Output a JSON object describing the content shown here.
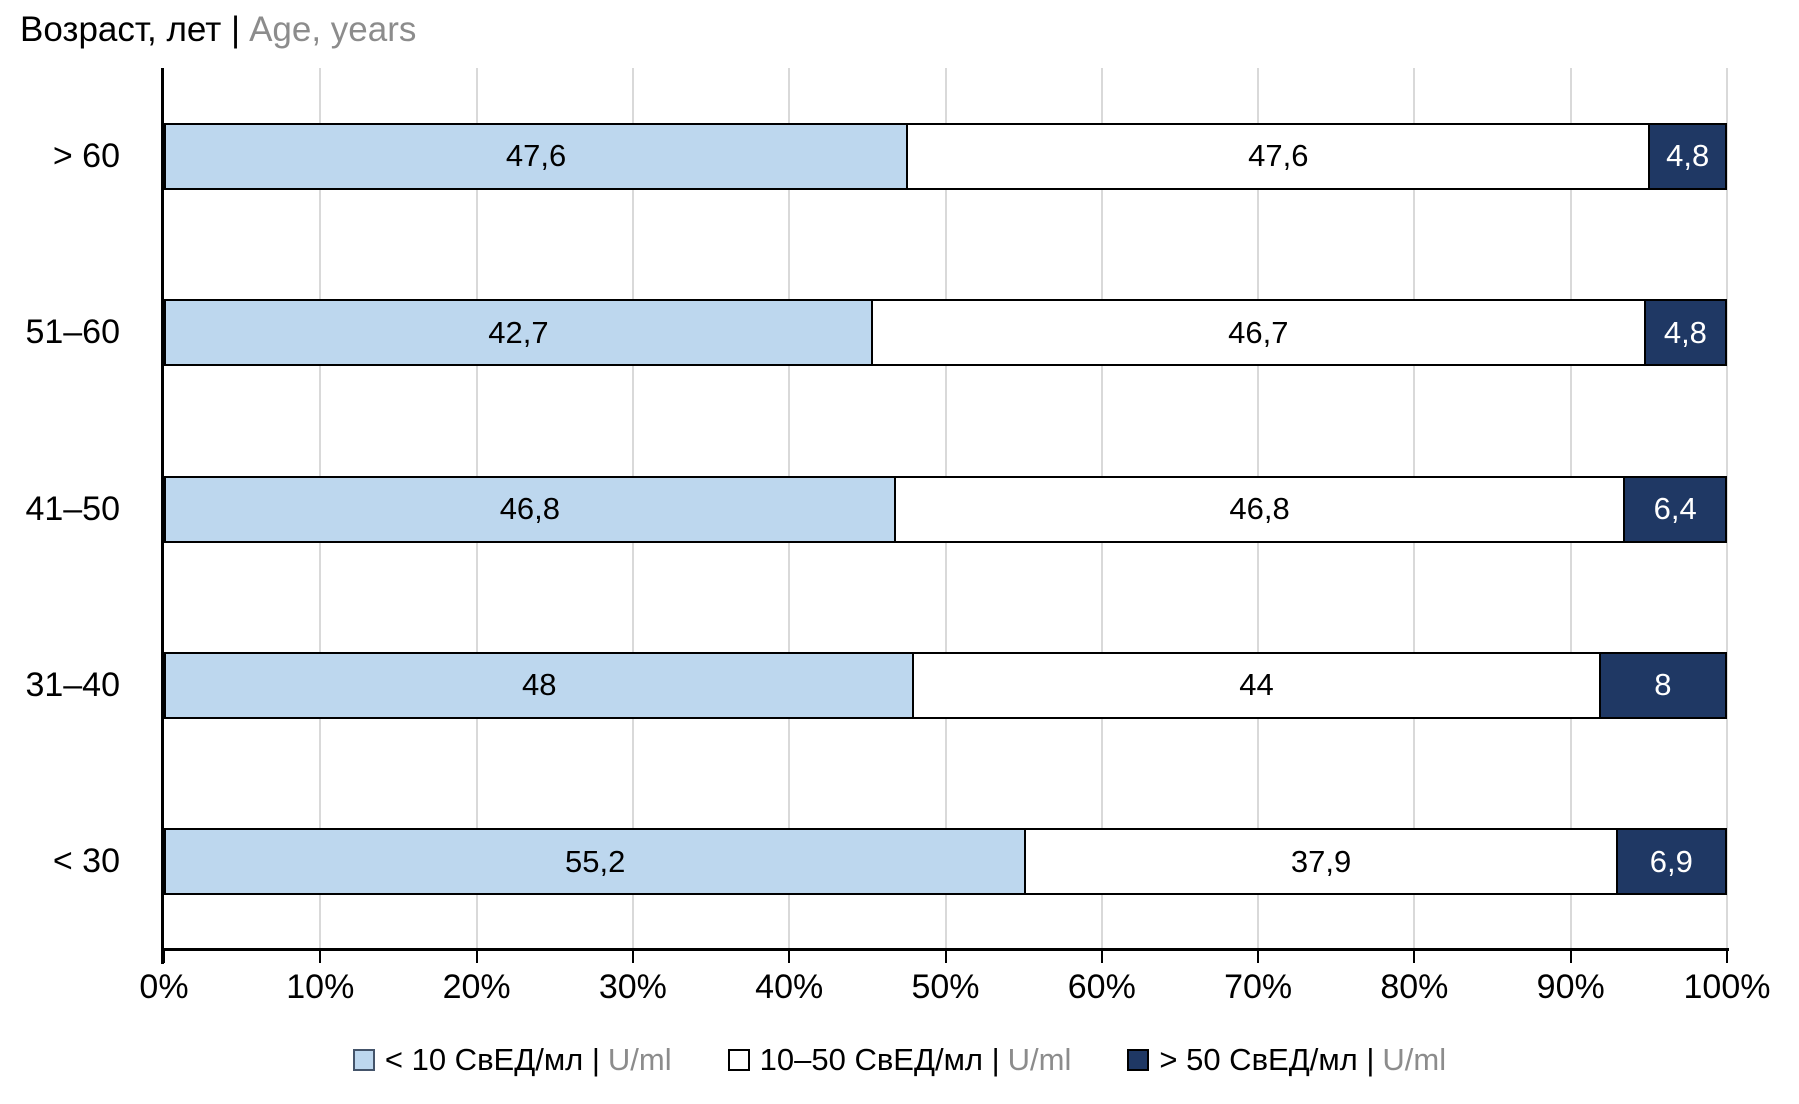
{
  "title": {
    "primary": "Возраст, лет |",
    "secondary": "Age, years"
  },
  "colors": {
    "series_light_blue": "#BDD7EE",
    "series_white": "#FFFFFF",
    "series_navy": "#1F3864",
    "segment_border": "#000000",
    "gridline": "#D9D9D9",
    "axis": "#000000",
    "secondary_text": "#8C8C8C"
  },
  "chart_data": {
    "type": "bar",
    "subtype": "horizontal-100pct-stacked",
    "title": "Возраст, лет | Age, years",
    "categories": [
      "> 60",
      "51–60",
      "41–50",
      "31–40",
      "< 30"
    ],
    "series": [
      {
        "name": "< 10 СвЕД/мл | U/ml",
        "values": [
          47.6,
          42.7,
          46.8,
          48,
          55.2
        ],
        "labels": [
          "47,6",
          "42,7",
          "46,8",
          "48",
          "55,2"
        ],
        "color": "#BDD7EE",
        "text_color": "#000000"
      },
      {
        "name": "10–50 СвЕД/мл | U/ml",
        "values": [
          47.6,
          46.7,
          46.8,
          44,
          37.9
        ],
        "labels": [
          "47,6",
          "46,7",
          "46,8",
          "44",
          "37,9"
        ],
        "color": "#FFFFFF",
        "text_color": "#000000"
      },
      {
        "name": "> 50 СвЕД/мл | U/ml",
        "values": [
          4.8,
          4.8,
          6.4,
          8,
          6.9
        ],
        "labels": [
          "4,8",
          "4,8",
          "6,4",
          "8",
          "6,9"
        ],
        "color": "#1F3864",
        "text_color": "#FFFFFF"
      }
    ],
    "x_ticks": [
      "0%",
      "10%",
      "20%",
      "30%",
      "40%",
      "50%",
      "60%",
      "70%",
      "80%",
      "90%",
      "100%"
    ],
    "xlim": [
      0,
      100
    ],
    "grid": "vertical gridlines every 10%",
    "legend_position": "bottom",
    "note": "each row is normalized to fill 0–100%"
  },
  "legend": [
    {
      "label": "< 10 СвЕД/мл |",
      "unit": "U/ml",
      "swatch": "#BDD7EE",
      "swatch_border": "#44546A"
    },
    {
      "label": "10–50 СвЕД/мл |",
      "unit": "U/ml",
      "swatch": "#FFFFFF",
      "swatch_border": "#000000"
    },
    {
      "label": "> 50 СвЕД/мл |",
      "unit": "U/ml",
      "swatch": "#1F3864",
      "swatch_border": "#000000"
    }
  ]
}
